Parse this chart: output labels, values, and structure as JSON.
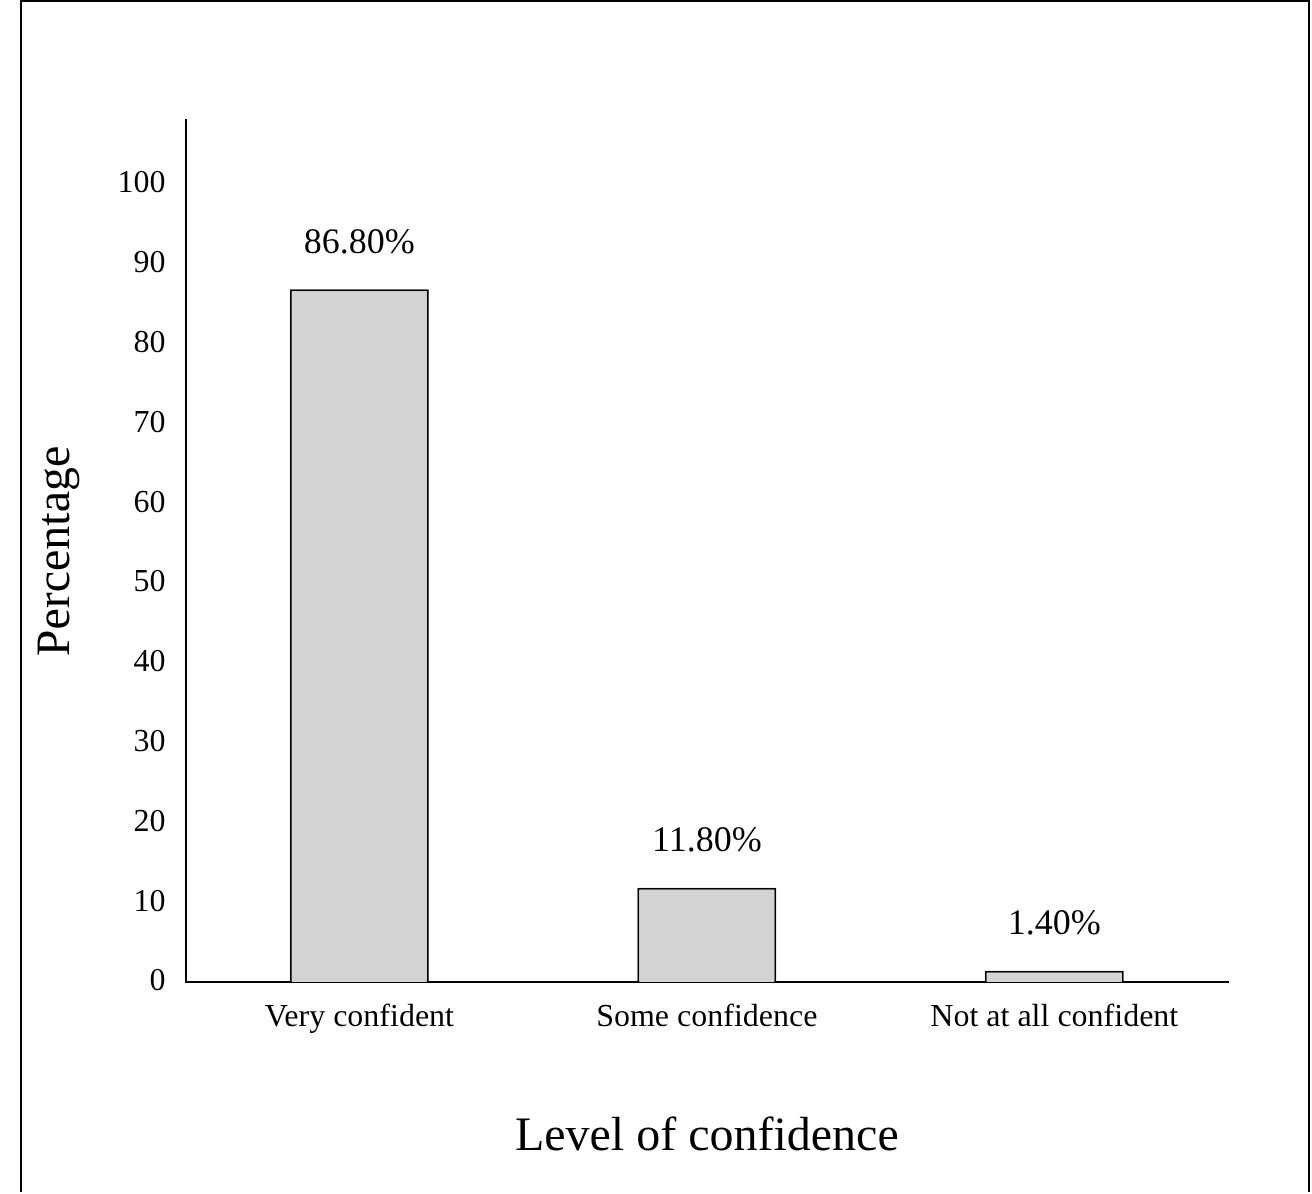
{
  "chart_data": {
    "type": "bar",
    "xlabel": "Level of confidence",
    "ylabel": "Percentage",
    "categories": [
      "Very confident",
      "Some confidence",
      "Not at all confident"
    ],
    "values": [
      86.8,
      11.8,
      1.4
    ],
    "value_labels": [
      "86.80%",
      "11.80%",
      "1.40%"
    ],
    "color": "#d3d3d3",
    "ylim": [
      0,
      108
    ],
    "yticks": [
      0,
      10,
      20,
      30,
      40,
      50,
      60,
      70,
      80,
      90,
      100
    ],
    "grid": false,
    "legend": false
  }
}
